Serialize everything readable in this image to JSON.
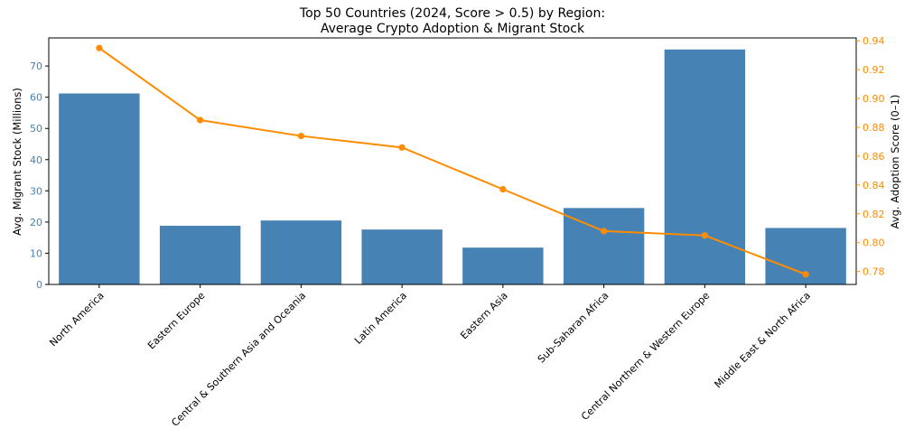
{
  "chart_data": {
    "type": "bar",
    "title": "Top 50 Countries (2024, Score > 0.5) by Region:",
    "subtitle": "Average Crypto Adoption & Migrant Stock",
    "xlabel": "",
    "ylabel": "Avg. Migrant Stock (Millions)",
    "y2label": "Avg. Adoption Score (0–1)",
    "categories": [
      "North America",
      "Eastern Europe",
      "Central & Southern Asia and Oceania",
      "Latin America",
      "Eastern Asia",
      "Sub-Saharan Africa",
      "Central Northern & Western Europe",
      "Middle East & North Africa"
    ],
    "series": [
      {
        "type": "bar",
        "axis": "left",
        "color": "#4682b4",
        "values": [
          61.2,
          18.8,
          20.5,
          17.6,
          11.8,
          24.5,
          75.3,
          18.1
        ]
      },
      {
        "type": "line",
        "axis": "right",
        "color": "#ff8c00",
        "marker": "circle",
        "values": [
          0.935,
          0.885,
          0.874,
          0.866,
          0.837,
          0.808,
          0.805,
          0.778
        ]
      }
    ],
    "ylim": [
      0,
      79
    ],
    "yticks": [
      0,
      10,
      20,
      30,
      40,
      50,
      60,
      70
    ],
    "y2lim": [
      0.771,
      0.942
    ],
    "y2ticks": [
      "0.78",
      "0.80",
      "0.82",
      "0.84",
      "0.86",
      "0.88",
      "0.90",
      "0.92",
      "0.94"
    ],
    "grid": false,
    "legend": "none",
    "colors": {
      "left_axis": "#4682b4",
      "right_axis": "#ff8c00",
      "bars": "#4682b4",
      "line": "#ff8c00"
    }
  }
}
